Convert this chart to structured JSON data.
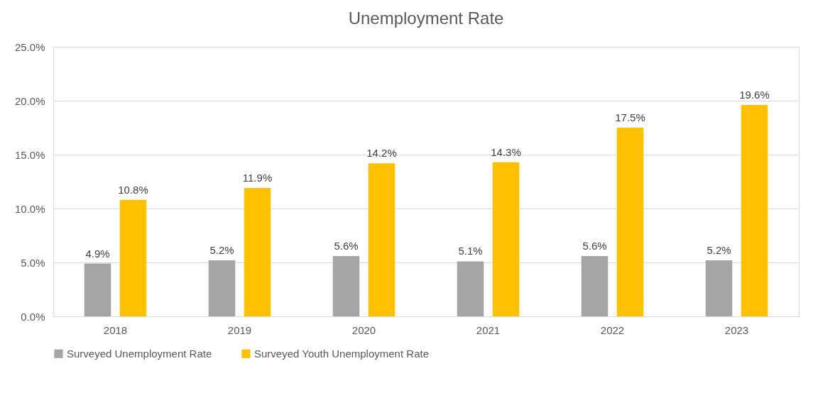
{
  "chart_data": {
    "type": "bar",
    "title": "Unemployment Rate",
    "categories": [
      "2018",
      "2019",
      "2020",
      "2021",
      "2022",
      "2023"
    ],
    "series": [
      {
        "name": "Surveyed Unemployment Rate",
        "color": "#a5a5a5",
        "values": [
          4.9,
          5.2,
          5.6,
          5.1,
          5.6,
          5.2
        ],
        "value_labels": [
          "4.9%",
          "5.2%",
          "5.6%",
          "5.1%",
          "5.6%",
          "5.2%"
        ]
      },
      {
        "name": "Surveyed Youth Unemployment Rate",
        "color": "#ffc000",
        "values": [
          10.8,
          11.9,
          14.2,
          14.3,
          17.5,
          19.6
        ],
        "value_labels": [
          "10.8%",
          "11.9%",
          "14.2%",
          "14.3%",
          "17.5%",
          "19.6%"
        ]
      }
    ],
    "ylim": [
      0,
      25
    ],
    "yticks": [
      {
        "value": 0,
        "label": "0.0%"
      },
      {
        "value": 5,
        "label": "5.0%"
      },
      {
        "value": 10,
        "label": "10.0%"
      },
      {
        "value": 15,
        "label": "15.0%"
      },
      {
        "value": 20,
        "label": "20.0%"
      },
      {
        "value": 25,
        "label": "25.0%"
      }
    ],
    "grid": "y",
    "legend": "bottom"
  }
}
